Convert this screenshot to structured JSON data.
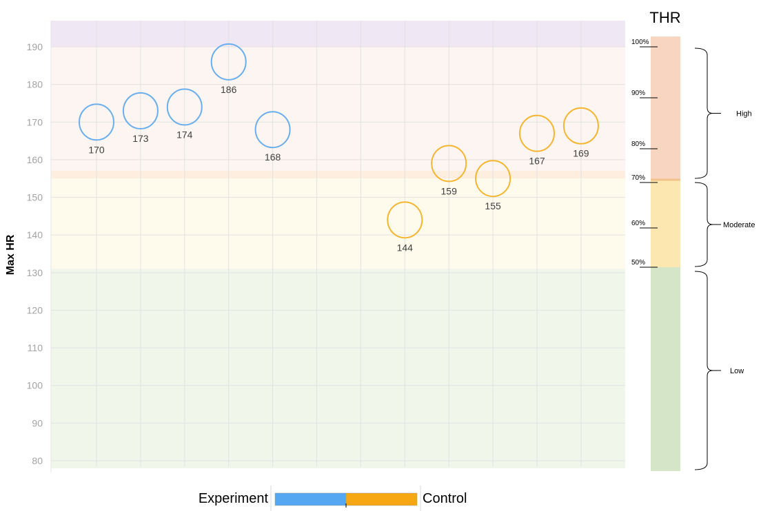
{
  "chart_data": {
    "type": "scatter",
    "ylabel": "Max HR",
    "ylim": [
      78,
      197
    ],
    "yticks": [
      80,
      90,
      100,
      110,
      120,
      130,
      140,
      150,
      160,
      170,
      180,
      190
    ],
    "grid": true,
    "zones": [
      {
        "name": "top band",
        "from": 190,
        "to": 197,
        "color": "#efe7f3"
      },
      {
        "name": "high",
        "from": 156,
        "to": 190,
        "color": "#fcf5f1"
      },
      {
        "name": "high-boundary",
        "from": 155,
        "to": 157,
        "color": "#fdeee0"
      },
      {
        "name": "moderate",
        "from": 131,
        "to": 155,
        "color": "#fefaec"
      },
      {
        "name": "low",
        "from": 78,
        "to": 131,
        "color": "#f0f6ea"
      }
    ],
    "series": [
      {
        "name": "Experiment",
        "color": "#6aaeee",
        "points": [
          {
            "x": 1,
            "y": 170
          },
          {
            "x": 2,
            "y": 173
          },
          {
            "x": 3,
            "y": 174
          },
          {
            "x": 4,
            "y": 186
          },
          {
            "x": 5,
            "y": 168
          }
        ]
      },
      {
        "name": "Control",
        "color": "#f5b52e",
        "points": [
          {
            "x": 8,
            "y": 144
          },
          {
            "x": 9,
            "y": 159
          },
          {
            "x": 10,
            "y": 155
          },
          {
            "x": 11,
            "y": 167
          },
          {
            "x": 12,
            "y": 169
          }
        ]
      }
    ],
    "legend": {
      "placement": "bottom",
      "left_label": "Experiment",
      "right_label": "Control",
      "left_color": "#55a7f2",
      "right_color": "#f7a711"
    },
    "thr_panel": {
      "title": "THR",
      "ticks": [
        "100%",
        "90%",
        "80%",
        "70%",
        "60%",
        "50%"
      ],
      "zones": [
        {
          "label": "High",
          "color": "#f8d5c0"
        },
        {
          "label": "Moderate",
          "color": "#fde7b0"
        },
        {
          "label": "Low",
          "color": "#d4e6c7"
        }
      ]
    }
  }
}
